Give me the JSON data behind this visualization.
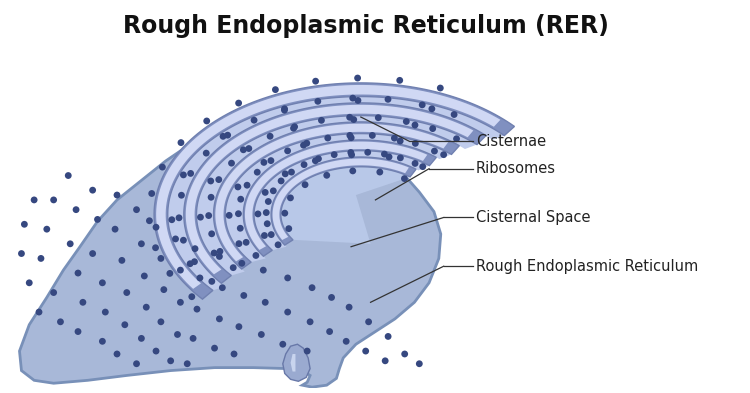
{
  "title": "Rough Endoplasmic Reticulum (RER)",
  "title_fontsize": 17,
  "title_fontweight": "bold",
  "background_color": "#ffffff",
  "labels": [
    "Cisternae",
    "Ribosomes",
    "Cisternal Space",
    "Rough Endoplasmic Reticulum"
  ],
  "label_fontsize": 10.5,
  "label_color": "#222222",
  "body_color": "#a8b8d8",
  "body_edge_color": "#7890b8",
  "membrane_color": "#7080b0",
  "membrane_face_color": "#8090c0",
  "lumen_color": "#c0ccec",
  "ribosome_color": "#364880",
  "line_color": "#333333"
}
